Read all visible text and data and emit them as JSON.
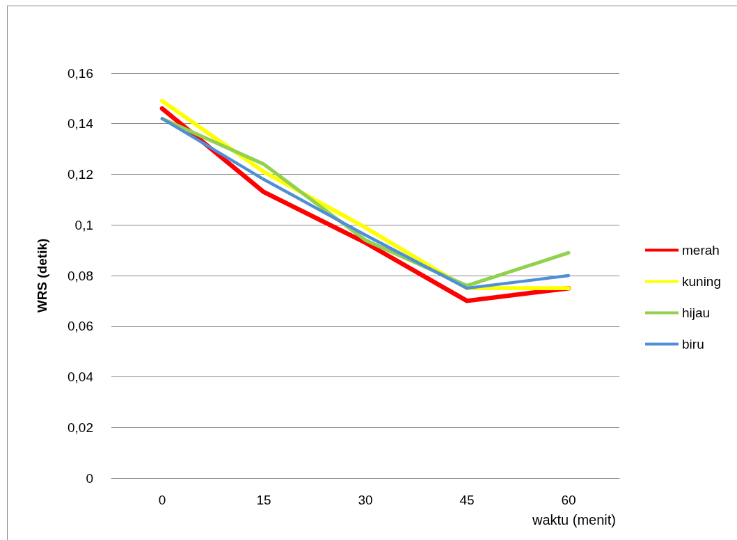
{
  "chart_data": {
    "type": "line",
    "xlabel": "waktu (menit)",
    "ylabel": "WRS (detik)",
    "categories": [
      "0",
      "15",
      "30",
      "45",
      "60"
    ],
    "series": [
      {
        "name": "merah",
        "color": "#ff0000",
        "values": [
          0.146,
          0.113,
          0.093,
          0.07,
          0.075
        ]
      },
      {
        "name": "kuning",
        "color": "#ffff00",
        "values": [
          0.149,
          0.121,
          0.099,
          0.075,
          0.075
        ]
      },
      {
        "name": "hijau",
        "color": "#92d050",
        "values": [
          0.142,
          0.124,
          0.094,
          0.076,
          0.089
        ]
      },
      {
        "name": "biru",
        "color": "#4f8fd8",
        "values": [
          0.142,
          0.118,
          0.096,
          0.075,
          0.08
        ]
      }
    ],
    "ylim": [
      0,
      0.16
    ],
    "yticks": [
      0,
      {
        "value": 0.02,
        "label": "0,02"
      },
      {
        "value": 0.04,
        "label": "0,04"
      },
      {
        "value": 0.06,
        "label": "0,06"
      },
      {
        "value": 0.08,
        "label": "0,08"
      },
      {
        "value": 0.1,
        "label": "0,1"
      },
      {
        "value": 0.12,
        "label": "0,12"
      },
      {
        "value": 0.14,
        "label": "0,14"
      },
      {
        "value": 0.16,
        "label": "0,16"
      }
    ],
    "grid": "y",
    "legend": "right",
    "marker": "none",
    "line_style": "solid"
  }
}
